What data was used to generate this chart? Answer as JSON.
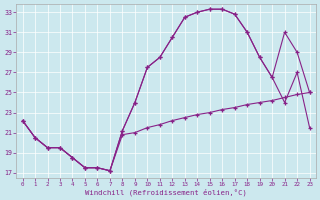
{
  "xlabel": "Windchill (Refroidissement éolien,°C)",
  "xlim": [
    -0.5,
    23.5
  ],
  "ylim": [
    16.5,
    33.8
  ],
  "xticks": [
    0,
    1,
    2,
    3,
    4,
    5,
    6,
    7,
    8,
    9,
    10,
    11,
    12,
    13,
    14,
    15,
    16,
    17,
    18,
    19,
    20,
    21,
    22,
    23
  ],
  "yticks": [
    17,
    19,
    21,
    23,
    25,
    27,
    29,
    31,
    33
  ],
  "bg_color": "#cce8ee",
  "line_color": "#882288",
  "line1_x": [
    0,
    1,
    2,
    3,
    4,
    5,
    6,
    7,
    8,
    9,
    10,
    11,
    12,
    13,
    14,
    15,
    16,
    17,
    18,
    19,
    20,
    21,
    22,
    23
  ],
  "line1_y": [
    22.2,
    20.5,
    19.5,
    19.5,
    18.5,
    17.5,
    17.5,
    17.2,
    21.2,
    24.0,
    27.5,
    28.5,
    30.5,
    32.5,
    33.0,
    33.3,
    33.3,
    32.8,
    31.0,
    28.5,
    26.5,
    24.0,
    27.0,
    21.5
  ],
  "line2_x": [
    0,
    1,
    2,
    3,
    4,
    5,
    6,
    7,
    8,
    9,
    10,
    11,
    12,
    13,
    14,
    15,
    16,
    17,
    18,
    19,
    20,
    21,
    22,
    23
  ],
  "line2_y": [
    22.2,
    20.5,
    19.5,
    19.5,
    18.5,
    17.5,
    17.5,
    17.2,
    21.2,
    24.0,
    27.5,
    28.5,
    30.5,
    32.5,
    33.0,
    33.3,
    33.3,
    32.8,
    31.0,
    28.5,
    26.5,
    31.0,
    29.0,
    25.0
  ],
  "line3_x": [
    0,
    1,
    2,
    3,
    4,
    5,
    6,
    7,
    8,
    9,
    10,
    11,
    12,
    13,
    14,
    15,
    16,
    17,
    18,
    19,
    20,
    21,
    22,
    23
  ],
  "line3_y": [
    22.2,
    20.5,
    19.5,
    19.5,
    18.5,
    17.5,
    17.5,
    17.2,
    20.8,
    21.0,
    21.5,
    21.8,
    22.2,
    22.5,
    22.8,
    23.0,
    23.3,
    23.5,
    23.8,
    24.0,
    24.2,
    24.5,
    24.8,
    25.0
  ]
}
